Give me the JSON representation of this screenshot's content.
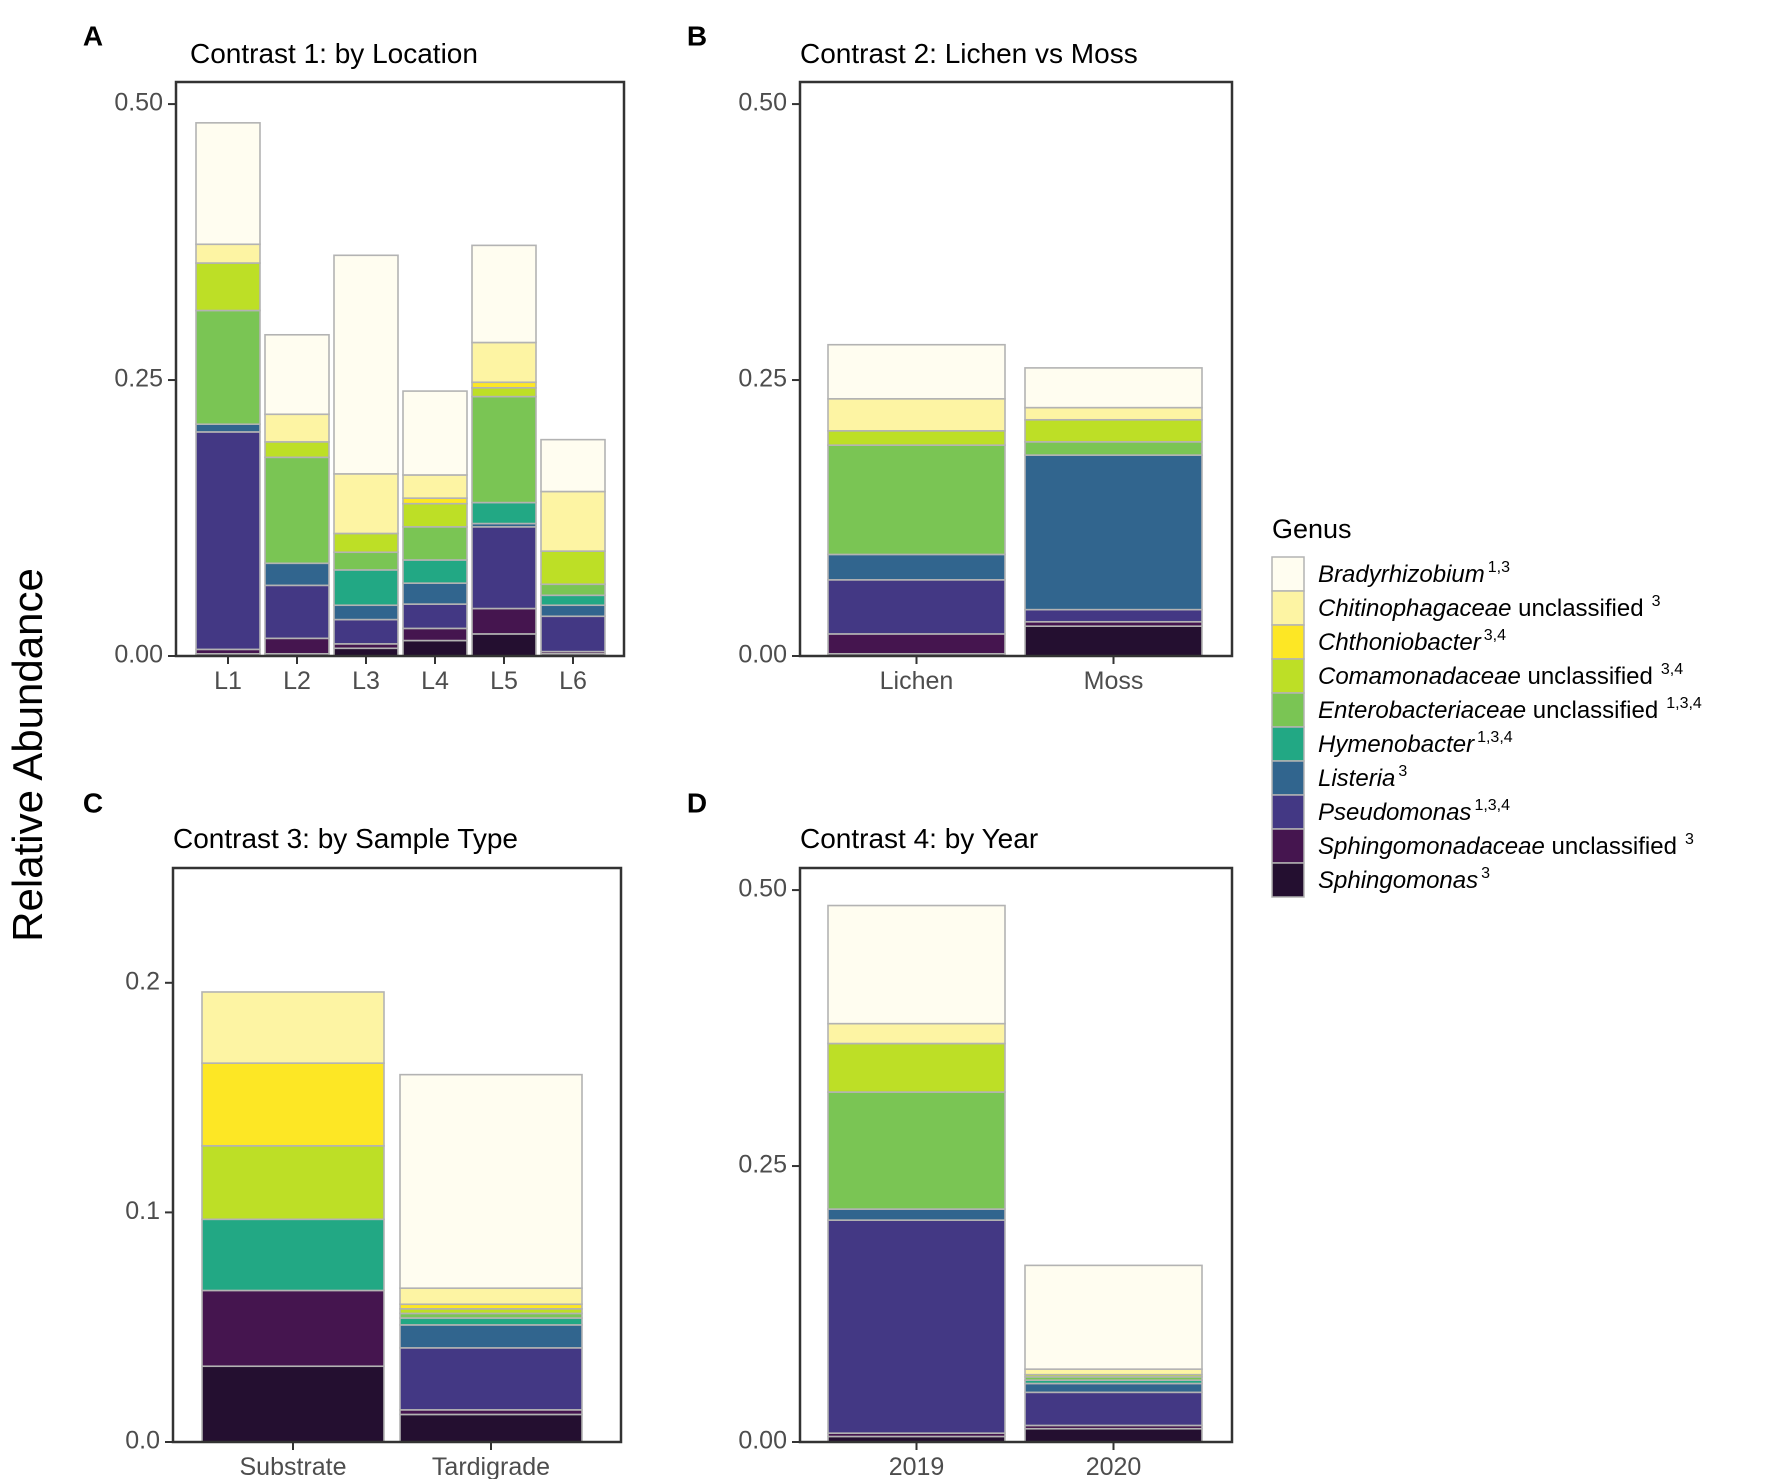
{
  "y_axis_label": "Relative Abundance",
  "legend": {
    "title": "Genus",
    "items": [
      {
        "italic": "Bradyrhizobium",
        "plain": "",
        "sup": "1,3",
        "color": "#fffdf0"
      },
      {
        "italic": "Chitinophagaceae",
        "plain": " unclassified",
        "sup": "3",
        "color": "#fdf4a3"
      },
      {
        "italic": "Chthoniobacter",
        "plain": "",
        "sup": "3,4",
        "color": "#fde725"
      },
      {
        "italic": "Comamonadaceae",
        "plain": " unclassified",
        "sup": "3,4",
        "color": "#bddf26"
      },
      {
        "italic": "Enterobacteriaceae",
        "plain": " unclassified",
        "sup": "1,3,4",
        "color": "#7ac554"
      },
      {
        "italic": "Hymenobacter",
        "plain": "",
        "sup": "1,3,4",
        "color": "#22a884"
      },
      {
        "italic": "Listeria",
        "plain": "",
        "sup": "3",
        "color": "#31658e"
      },
      {
        "italic": "Pseudomonas",
        "plain": "",
        "sup": "1,3,4",
        "color": "#433884"
      },
      {
        "italic": "Sphingomonadaceae",
        "plain": " unclassified",
        "sup": "3",
        "color": "#45154f"
      },
      {
        "italic": "Sphingomonas",
        "plain": "",
        "sup": "3",
        "color": "#240f30"
      }
    ]
  },
  "chart_data": [
    {
      "panel": "A",
      "title": "Contrast 1: by Location",
      "type": "bar",
      "stacked": true,
      "categories": [
        "L1",
        "L2",
        "L3",
        "L4",
        "L5",
        "L6"
      ],
      "ylim": [
        0,
        0.52
      ],
      "yticks": [
        0,
        0.25,
        0.5
      ],
      "ytick_labels": [
        "0.00",
        "0.25",
        "0.50"
      ],
      "series": [
        {
          "name": "Sphingomonas",
          "values": [
            0.002,
            0.002,
            0.007,
            0.014,
            0.02,
            0.002
          ]
        },
        {
          "name": "Sphingomonadaceae unclassified",
          "values": [
            0.004,
            0.014,
            0.004,
            0.011,
            0.023,
            0.002
          ]
        },
        {
          "name": "Pseudomonas",
          "values": [
            0.197,
            0.048,
            0.022,
            0.022,
            0.074,
            0.032
          ]
        },
        {
          "name": "Listeria",
          "values": [
            0.007,
            0.02,
            0.013,
            0.019,
            0.003,
            0.01
          ]
        },
        {
          "name": "Hymenobacter",
          "values": [
            0.0,
            0.0,
            0.032,
            0.021,
            0.019,
            0.009
          ]
        },
        {
          "name": "Enterobacteriaceae unclassified",
          "values": [
            0.103,
            0.096,
            0.016,
            0.03,
            0.096,
            0.01
          ]
        },
        {
          "name": "Comamonadaceae unclassified",
          "values": [
            0.043,
            0.014,
            0.017,
            0.021,
            0.008,
            0.03
          ]
        },
        {
          "name": "Chthoniobacter",
          "values": [
            0.0,
            0.0,
            0.0,
            0.005,
            0.005,
            0.0
          ]
        },
        {
          "name": "Chitinophagaceae unclassified",
          "values": [
            0.017,
            0.025,
            0.054,
            0.021,
            0.036,
            0.054
          ]
        },
        {
          "name": "Bradyrhizobium",
          "values": [
            0.11,
            0.072,
            0.198,
            0.076,
            0.088,
            0.047
          ]
        }
      ]
    },
    {
      "panel": "B",
      "title": "Contrast 2: Lichen vs Moss",
      "type": "bar",
      "stacked": true,
      "categories": [
        "Lichen",
        "Moss"
      ],
      "ylim": [
        0,
        0.52
      ],
      "yticks": [
        0,
        0.25,
        0.5
      ],
      "ytick_labels": [
        "0.00",
        "0.25",
        "0.50"
      ],
      "series": [
        {
          "name": "Sphingomonas",
          "values": [
            0.002,
            0.027
          ]
        },
        {
          "name": "Sphingomonadaceae unclassified",
          "values": [
            0.018,
            0.004
          ]
        },
        {
          "name": "Pseudomonas",
          "values": [
            0.049,
            0.011
          ]
        },
        {
          "name": "Listeria",
          "values": [
            0.023,
            0.14
          ]
        },
        {
          "name": "Hymenobacter",
          "values": [
            0.0,
            0.0
          ]
        },
        {
          "name": "Enterobacteriaceae unclassified",
          "values": [
            0.099,
            0.012
          ]
        },
        {
          "name": "Comamonadaceae unclassified",
          "values": [
            0.013,
            0.02
          ]
        },
        {
          "name": "Chthoniobacter",
          "values": [
            0.0,
            0.0
          ]
        },
        {
          "name": "Chitinophagaceae unclassified",
          "values": [
            0.029,
            0.011
          ]
        },
        {
          "name": "Bradyrhizobium",
          "values": [
            0.049,
            0.036
          ]
        }
      ]
    },
    {
      "panel": "C",
      "title": "Contrast 3: by Sample Type",
      "type": "bar",
      "stacked": true,
      "categories": [
        "Substrate",
        "Tardigrade"
      ],
      "ylim": [
        0,
        0.25
      ],
      "yticks": [
        0,
        0.1,
        0.2
      ],
      "ytick_labels": [
        "0.0",
        "0.1",
        "0.2"
      ],
      "series": [
        {
          "name": "Sphingomonas",
          "values": [
            0.033,
            0.012
          ]
        },
        {
          "name": "Sphingomonadaceae unclassified",
          "values": [
            0.033,
            0.002
          ]
        },
        {
          "name": "Pseudomonas",
          "values": [
            0.0,
            0.027
          ]
        },
        {
          "name": "Listeria",
          "values": [
            0.0,
            0.01
          ]
        },
        {
          "name": "Hymenobacter",
          "values": [
            0.031,
            0.003
          ]
        },
        {
          "name": "Enterobacteriaceae unclassified",
          "values": [
            0.0,
            0.002
          ]
        },
        {
          "name": "Comamonadaceae unclassified",
          "values": [
            0.032,
            0.002
          ]
        },
        {
          "name": "Chthoniobacter",
          "values": [
            0.036,
            0.002
          ]
        },
        {
          "name": "Chitinophagaceae unclassified",
          "values": [
            0.031,
            0.007
          ]
        },
        {
          "name": "Bradyrhizobium",
          "values": [
            0.0,
            0.093
          ]
        }
      ]
    },
    {
      "panel": "D",
      "title": "Contrast 4: by Year",
      "type": "bar",
      "stacked": true,
      "categories": [
        "2019",
        "2020"
      ],
      "ylim": [
        0,
        0.52
      ],
      "yticks": [
        0,
        0.25,
        0.5
      ],
      "ytick_labels": [
        "0.00",
        "0.25",
        "0.50"
      ],
      "series": [
        {
          "name": "Sphingomonas",
          "values": [
            0.005,
            0.012
          ]
        },
        {
          "name": "Sphingomonadaceae unclassified",
          "values": [
            0.003,
            0.003
          ]
        },
        {
          "name": "Pseudomonas",
          "values": [
            0.193,
            0.03
          ]
        },
        {
          "name": "Listeria",
          "values": [
            0.01,
            0.008
          ]
        },
        {
          "name": "Hymenobacter",
          "values": [
            0.0,
            0.003
          ]
        },
        {
          "name": "Enterobacteriaceae unclassified",
          "values": [
            0.106,
            0.003
          ]
        },
        {
          "name": "Comamonadaceae unclassified",
          "values": [
            0.044,
            0.002
          ]
        },
        {
          "name": "Chthoniobacter",
          "values": [
            0.0,
            0.0
          ]
        },
        {
          "name": "Chitinophagaceae unclassified",
          "values": [
            0.018,
            0.005
          ]
        },
        {
          "name": "Bradyrhizobium",
          "values": [
            0.107,
            0.094
          ]
        }
      ]
    }
  ]
}
